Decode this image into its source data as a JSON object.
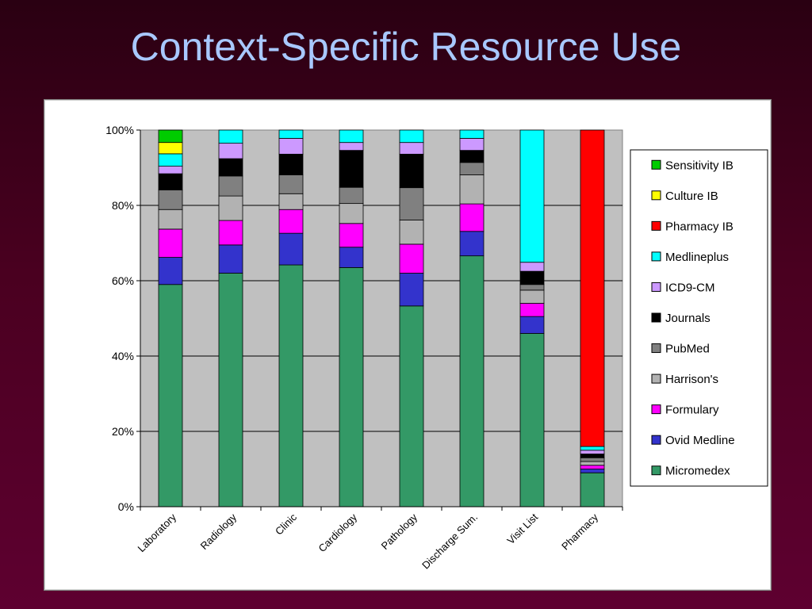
{
  "slide": {
    "title": "Context-Specific Resource Use"
  },
  "chart_data": {
    "type": "bar",
    "stacked": "percent",
    "categories": [
      "Laboratory",
      "Radiology",
      "Clinic",
      "Cardiology",
      "Pathology",
      "Discharge Sum.",
      "Visit List",
      "Pharmacy"
    ],
    "ylim": [
      0,
      100
    ],
    "yticks": [
      "0%",
      "20%",
      "40%",
      "60%",
      "80%",
      "100%"
    ],
    "grid": true,
    "legend_position": "right",
    "plot_background": "#c0c0c0",
    "series": [
      {
        "name": "Micromedex",
        "color": "#339966",
        "values": [
          59,
          62,
          64.2,
          63.5,
          53.3,
          66.6,
          46,
          9
        ]
      },
      {
        "name": "Ovid Medline",
        "color": "#3333cc",
        "values": [
          7.2,
          7.5,
          8.4,
          5.4,
          8.7,
          6.5,
          4.5,
          1
        ]
      },
      {
        "name": "Formulary",
        "color": "#ff00ff",
        "values": [
          7.5,
          6.5,
          6.3,
          6.3,
          7.7,
          7.3,
          3.5,
          1
        ]
      },
      {
        "name": "Harrison's",
        "color": "#b2b2b2",
        "values": [
          5.2,
          6.5,
          4.2,
          5.3,
          6.4,
          7.7,
          3.5,
          1
        ]
      },
      {
        "name": "PubMed",
        "color": "#808080",
        "values": [
          5.2,
          5.3,
          5.0,
          4.3,
          8.6,
          3.3,
          1.5,
          1
        ]
      },
      {
        "name": "Journals",
        "color": "#000000",
        "values": [
          4.3,
          4.6,
          5.5,
          9.8,
          8.9,
          3.2,
          3.5,
          1
        ]
      },
      {
        "name": "ICD9-CM",
        "color": "#cc99ff",
        "values": [
          2.0,
          4.1,
          4.2,
          2.1,
          3.1,
          3.2,
          2.4,
          1
        ]
      },
      {
        "name": "Medlineplus",
        "color": "#00ffff",
        "values": [
          3.3,
          3.5,
          2.2,
          3.3,
          3.3,
          2.2,
          35.1,
          1
        ]
      },
      {
        "name": "Pharmacy IB",
        "color": "#ff0000",
        "values": [
          0,
          0,
          0,
          0,
          0,
          0,
          0,
          84
        ]
      },
      {
        "name": "Culture IB",
        "color": "#ffff00",
        "values": [
          3.0,
          0,
          0,
          0,
          0,
          0,
          0,
          0
        ]
      },
      {
        "name": "Sensitivity IB",
        "color": "#00cc00",
        "values": [
          3.3,
          0,
          0,
          0,
          0,
          0,
          0,
          0
        ]
      }
    ]
  }
}
